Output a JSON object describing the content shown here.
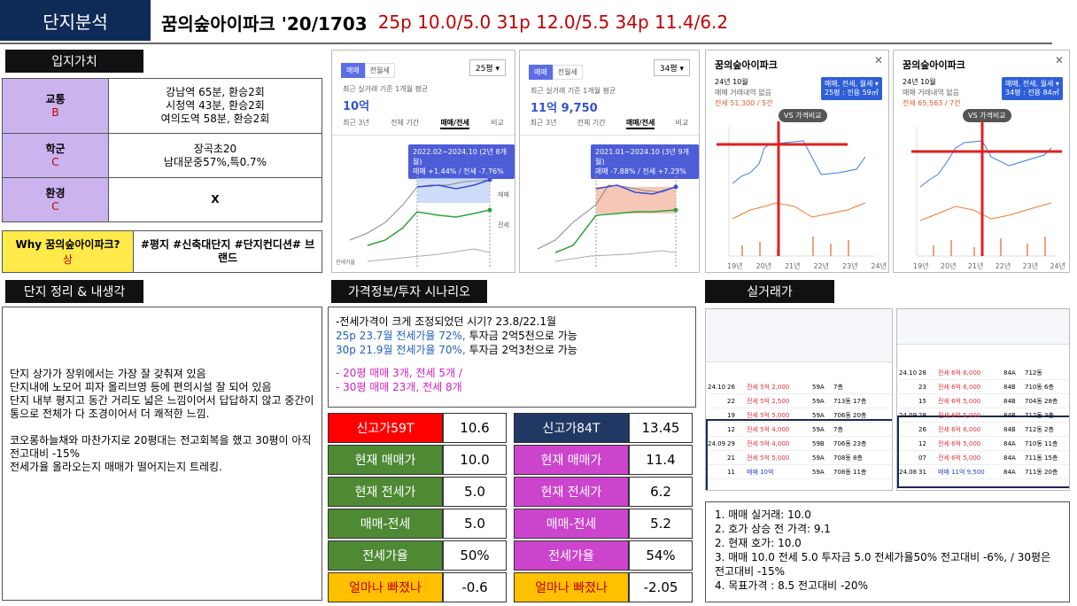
{
  "header": {
    "tag": "단지분석",
    "name": "꿈의숲아이파크 '20/1703",
    "prices": "25p 10.0/5.0 31p 12.0/5.5 34p 11.4/6.2"
  },
  "sections": {
    "location": "입지가치",
    "complex": "단지 정리 & 내생각",
    "price_info": "가격정보/투자 시나리오",
    "real_trade": "실거래가"
  },
  "location": {
    "rows": [
      {
        "label": "교통",
        "grade": "B",
        "lines": [
          "강남역 65분, 환승2회",
          "시청역 43분, 환승2회",
          "여의도역 58분, 환승2회"
        ]
      },
      {
        "label": "학군",
        "grade": "C",
        "lines": [
          "장곡초20",
          "남대문중57%,특0.7%"
        ]
      },
      {
        "label": "환경",
        "grade": "C",
        "lines": [
          "X"
        ]
      }
    ],
    "why_label": "Why 꿈의숲아이파크?",
    "why_grade": "상",
    "why_text": "#평지 #신축대단지 #단지컨디션# 브랜드"
  },
  "notes": [
    "단지 상가가 장위에서는  가장 잘 갖춰져 있음",
    "단지내에 노모어 피자 올리브영 등에 편의시설 잘 되어 있음",
    "단지 내부 평지고 동간 거리도 넓은 느낌이어서 답답하지 않고 중간이 통으로 전체가 다 조경이어서 더 쾌적한 느낌.",
    "",
    "코오롱하늘채와 마찬가지로 20평대는 전고회복을 했고 30평이 아직 전고대비 -15%",
    "전세가율 올라오는지 매매가 떨어지는지 트레킹."
  ],
  "scenario": {
    "line1": "-전세가격이 크게 조정되었던 시기? 23.8/22.1월",
    "line2_blue": "25p 23.7월 전세가율 72%,",
    "line2_rest": " 투자금 2억5천으로 가능",
    "line3_blue": "30p 21.9월 전세가율 70%,",
    "line3_rest": " 투자금 2억3천으로 가능",
    "line4": "-   20평 매매 3개, 전세 5개 /",
    "line5": "-   30평 매매 23개, 전세 8개"
  },
  "price_table": {
    "left": [
      {
        "label": "신고가59T",
        "value": "10.6",
        "color": "#ff0000",
        "fg": "#ffffff"
      },
      {
        "label": "현재 매매가",
        "value": "10.0",
        "color": "#4e8a34",
        "fg": "#ffffff"
      },
      {
        "label": "현재 전세가",
        "value": "5.0",
        "color": "#4e8a34",
        "fg": "#ffffff"
      },
      {
        "label": "매매-전세",
        "value": "5.0",
        "color": "#4e8a34",
        "fg": "#ffffff"
      },
      {
        "label": "전세가율",
        "value": "50%",
        "color": "#4e8a34",
        "fg": "#ffffff"
      },
      {
        "label": "얼마나 빠졌나",
        "value": "-0.6",
        "color": "#ffc000",
        "fg": "#c00000"
      }
    ],
    "right": [
      {
        "label": "신고가84T",
        "value": "13.45",
        "color": "#203864",
        "fg": "#ffffff"
      },
      {
        "label": "현재 매매가",
        "value": "11.4",
        "color": "#cc44cc",
        "fg": "#ffffff"
      },
      {
        "label": "현재 전세가",
        "value": "6.2",
        "color": "#cc44cc",
        "fg": "#ffffff"
      },
      {
        "label": "매매-전세",
        "value": "5.2",
        "color": "#cc44cc",
        "fg": "#ffffff"
      },
      {
        "label": "전세가율",
        "value": "54%",
        "color": "#cc44cc",
        "fg": "#ffffff"
      },
      {
        "label": "얼마나 빠졌나",
        "value": "-2.05",
        "color": "#ffc000",
        "fg": "#c00000"
      }
    ]
  },
  "shot1": {
    "tabs": [
      "매매",
      "전월세"
    ],
    "size": "25평",
    "caption": "최근 실거래 기준 1개월 평균",
    "price": "10억",
    "subtabs": [
      "최근 3년",
      "전체 기간",
      "매매/전세",
      "비교"
    ],
    "tooltip1": "2022.02~2024.10 (2년 8개월)",
    "tooltip2": "매매 +1.44% / 전세 -7.76%",
    "legend_sale": "매매",
    "legend_rent": "전세",
    "legend_ratio": "전세가율"
  },
  "shot2": {
    "tabs": [
      "매매",
      "전월세"
    ],
    "size": "34평",
    "caption": "최근 실거래 기준 1개월 평균",
    "price": "11억 9,750",
    "subtabs": [
      "최근 3년",
      "전체 기간",
      "매매/전세",
      "비교"
    ],
    "tooltip1": "2021.01~2024.10 (3년 9개월)",
    "tooltip2": "매매 -7.88% / 전세 +7.23%"
  },
  "shot3": {
    "title": "꿈의숲아이파크",
    "month": "24년 10월",
    "sub": "매매 거래내역 없음",
    "rent": "전세 51,300 / 5건",
    "box1": "매매, 전세, 월세 ▾",
    "box2": "25평 : 전용 59㎡",
    "vs": "VS 가격비교",
    "years": [
      "19년",
      "20년",
      "21년",
      "22년",
      "23년",
      "24년"
    ]
  },
  "shot4": {
    "title": "꿈의숲아이파크",
    "month": "24년 10월",
    "sub": "매매 거래내역 없음",
    "rent": "전세 65,563 / 7건",
    "box1": "매매, 전세, 월세 ▾",
    "box2": "34평 : 전용 84㎡",
    "vs": "VS 가격비교",
    "years": [
      "19년",
      "20년",
      "21년",
      "22년",
      "23년",
      "24년"
    ]
  },
  "real_trade_list": [
    "1. 매매 실거래: 10.0",
    "2. 호가 상승 전 가격: 9.1",
    "2. 현재 호가: 10.0",
    "3. 매매 10.0 전세 5.0 투자금 5.0 전세가율50%  전고대비 -6%, / 30평은 전고대비 -15%",
    "4. 목표가격 : 8.5 전고대비 -20%"
  ],
  "trade_left": {
    "rows": [
      [
        "24.10",
        "26",
        "",
        "전세 5억 2,000",
        "59A",
        "7층"
      ],
      [
        "",
        "22",
        "",
        "전세 5억 2,500",
        "59A",
        "713동 17층"
      ],
      [
        "",
        "19",
        "",
        "전세 5억 5,000",
        "59A",
        "706동 20층"
      ],
      [
        "",
        "12",
        "",
        "전세 5억 4,000",
        "59A",
        "7층"
      ],
      [
        "24.09",
        "29",
        "",
        "전세 5억 4,000",
        "59B",
        "706동 23층"
      ],
      [
        "",
        "21",
        "",
        "전세 5억 5,000",
        "59A",
        "708동 8층"
      ],
      [
        "",
        "11",
        "",
        "매매 10억",
        "59A",
        "708동 11층"
      ]
    ]
  },
  "trade_right": {
    "rows": [
      [
        "24.10",
        "28",
        "",
        "전세 6억 6,000",
        "84A",
        "712동"
      ],
      [
        "",
        "23",
        "",
        "전세 6억 6,000",
        "84B",
        "710동 6층"
      ],
      [
        "",
        "15",
        "",
        "전세 6억 5,000",
        "84B",
        "704동 28층"
      ],
      [
        "24.09",
        "28",
        "",
        "전세 6억 5,000",
        "84B",
        "712동 3층"
      ],
      [
        "",
        "26",
        "",
        "전세 6억 6,000",
        "84B",
        "712동 2층"
      ],
      [
        "",
        "12",
        "",
        "전세 6억 5,000",
        "84A",
        "710동 11층"
      ],
      [
        "",
        "07",
        "",
        "전세 6억 5,000",
        "84A",
        "711동 15층"
      ],
      [
        "24.08",
        "31",
        "",
        "매매 11억 9,500",
        "84A",
        "711동 20층"
      ]
    ]
  }
}
